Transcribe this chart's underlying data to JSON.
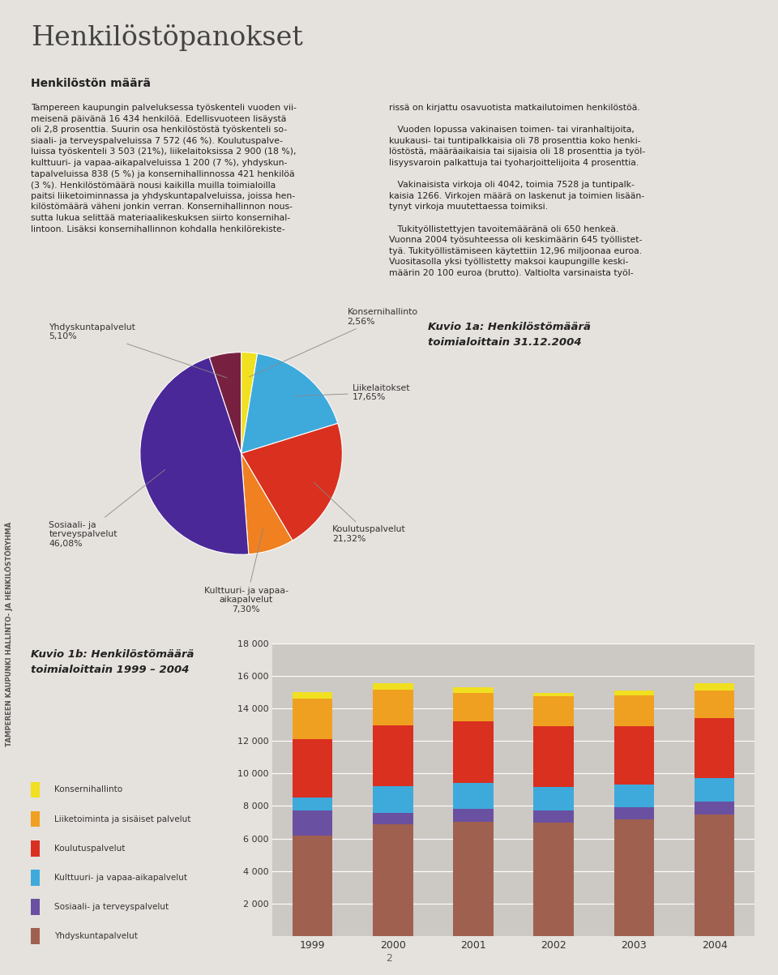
{
  "page_title": "Henkilöstöpanokset",
  "bg_color": "#e5e1dc",
  "section1_title": "Henkilöstön määrä",
  "pie_title": "Kuvio 1a: Henkilöstömäärä\ntoimialoittain 31.12.2004",
  "pie_labels": [
    "Konsernihallinto\n2,56%",
    "Liikelaitokset\n17,65%",
    "Koulutuspalvelut\n21,32%",
    "Kulttuuri- ja vapaa-\naikapalvelut\n7,30%",
    "Sosiaali- ja\nterveyspalvelut\n46,08%",
    "Yhdyskuntapalvelut\n5,10%"
  ],
  "pie_values": [
    2.56,
    17.65,
    21.32,
    7.3,
    46.08,
    5.1
  ],
  "pie_colors": [
    "#f0e020",
    "#3eaadc",
    "#d93020",
    "#f08020",
    "#4a2898",
    "#782040"
  ],
  "bar_title": "Kuvio 1b: Henkilöstömäärä\ntoimialoittain 1999 – 2004",
  "bar_years": [
    "1999",
    "2000",
    "2001",
    "2002",
    "2003",
    "2004"
  ],
  "bar_series_labels": [
    "Konsernihallinto",
    "Liiketoiminta ja sisäiset palvelut",
    "Koulutuspalvelut",
    "Kulttuuri- ja vapaa-aikapalvelut",
    "Sosiaali- ja terveyspalvelut",
    "Yhdyskuntapalvelut"
  ],
  "bar_colors": [
    "#f0e020",
    "#f0a020",
    "#d93020",
    "#3eaadc",
    "#6a50a0",
    "#a06050"
  ],
  "bar_data": [
    [
      400,
      420,
      380,
      220,
      310,
      470
    ],
    [
      2500,
      2200,
      1750,
      1850,
      1900,
      1700
    ],
    [
      3600,
      3750,
      3800,
      3750,
      3600,
      3700
    ],
    [
      800,
      1600,
      1600,
      1450,
      1400,
      1450
    ],
    [
      1500,
      700,
      750,
      700,
      700,
      750
    ],
    [
      6200,
      6900,
      7050,
      7000,
      7200,
      7500
    ]
  ],
  "bar_ylim": [
    0,
    18000
  ],
  "bar_yticks": [
    0,
    2000,
    4000,
    6000,
    8000,
    10000,
    12000,
    14000,
    16000,
    18000
  ],
  "sidebar_text": "TAMPEREEN KAUPUNKI HALLINTO- JA HENKILÖSTÖRYHMÄ",
  "bottom_page": "2"
}
